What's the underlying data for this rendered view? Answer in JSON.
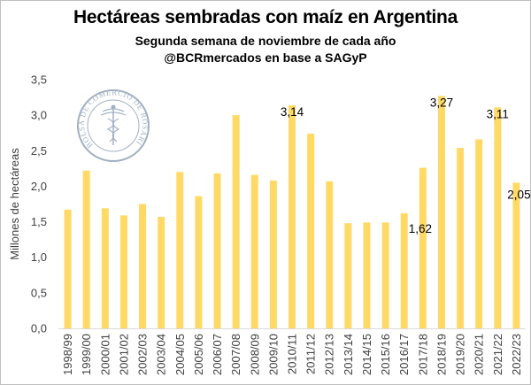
{
  "title": "Hectáreas sembradas con maíz en Argentina",
  "subtitle_1": "Segunda semana de noviembre de cada año",
  "subtitle_2": "@BCRmercados en base a SAGyP",
  "logo": {
    "text": "BOLSA DE COMERCIO DE ROSARIO",
    "icon": "caduceus-seal-icon",
    "color": "#8496b0"
  },
  "colors": {
    "bar": "#ffd966",
    "axis": "#d9d9d9"
  },
  "chart_data": {
    "type": "bar",
    "title": "Hectáreas sembradas con maíz en Argentina",
    "ylabel": "Millones de hectáreas",
    "xlabel": "",
    "ylim": [
      0,
      3.5
    ],
    "y_ticks": [
      "0,0",
      "0,5",
      "1,0",
      "1,5",
      "2,0",
      "2,5",
      "3,0",
      "3,5"
    ],
    "grid": false,
    "categories": [
      "1998/99",
      "1999/00",
      "2000/01",
      "2001/02",
      "2002/03",
      "2003/04",
      "2004/05",
      "2005/06",
      "2006/07",
      "2007/08",
      "2008/09",
      "2009/10",
      "2010/11",
      "2011/12",
      "2012/13",
      "2013/14",
      "2014/15",
      "2015/16",
      "2016/17",
      "2017/18",
      "2018/19",
      "2019/20",
      "2020/21",
      "2021/22",
      "2022/23"
    ],
    "values": [
      1.67,
      2.22,
      1.69,
      1.59,
      1.75,
      1.57,
      2.2,
      1.86,
      2.18,
      3.0,
      2.16,
      2.08,
      3.14,
      2.74,
      2.07,
      1.48,
      1.49,
      1.49,
      1.62,
      2.26,
      3.27,
      2.54,
      2.66,
      3.11,
      2.05
    ],
    "data_labels": [
      {
        "category": "2010/11",
        "text": "3,14"
      },
      {
        "category": "2016/17",
        "text": "1,62"
      },
      {
        "category": "2018/19",
        "text": "3,27"
      },
      {
        "category": "2021/22",
        "text": "3,11"
      },
      {
        "category": "2022/23",
        "text": "2,05"
      }
    ]
  }
}
